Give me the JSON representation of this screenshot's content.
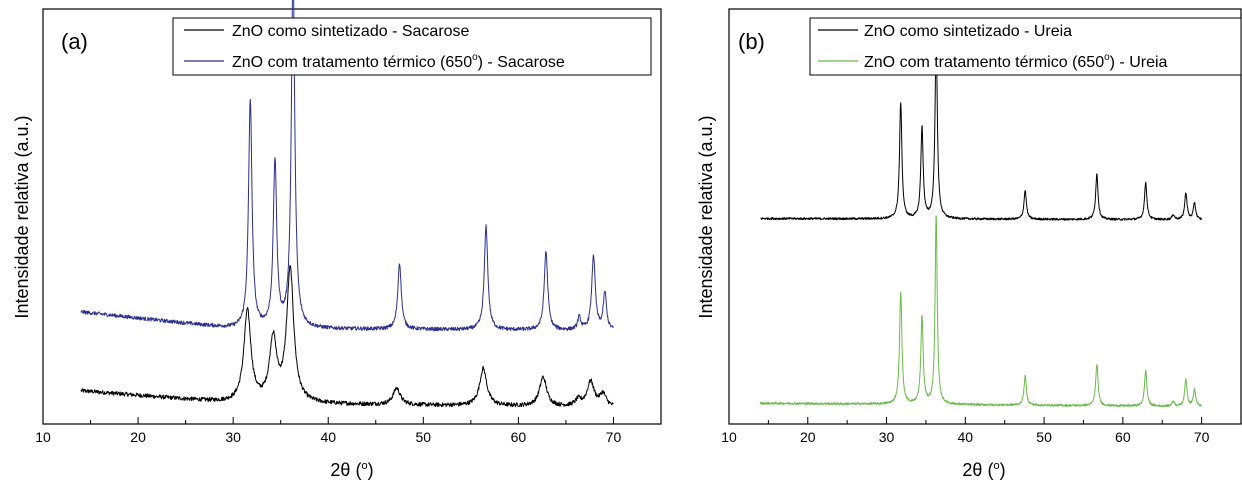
{
  "chart_data": [
    {
      "type": "line",
      "panel_label": "(a)",
      "ylabel": "Intensidade relativa (a.u.)",
      "xlabel": "2θ (°)",
      "xlabel_parts": {
        "symbol": "2θ",
        "unit_open": " (",
        "unit": "o",
        "unit_close": ")"
      },
      "xlim": [
        10,
        75
      ],
      "xticks": [
        10,
        20,
        30,
        40,
        50,
        60,
        70
      ],
      "ylim": [
        0,
        100
      ],
      "legend_position": "top-right",
      "series": [
        {
          "name": "ZnO como sintetizado - Sacarose",
          "legend": {
            "before": "ZnO como sintetizado - Sacarose"
          },
          "color": "#000000",
          "x_range": [
            14,
            70
          ],
          "baseline": [
            [
              14,
              8.0
            ],
            [
              30,
              5.0
            ],
            [
              70,
              4.0
            ]
          ],
          "peaks": [
            {
              "x": 31.5,
              "height": 22,
              "width": 0.45
            },
            {
              "x": 34.2,
              "height": 15,
              "width": 0.45
            },
            {
              "x": 36.0,
              "height": 32,
              "width": 0.45
            },
            {
              "x": 47.2,
              "height": 4,
              "width": 0.45
            },
            {
              "x": 56.3,
              "height": 9,
              "width": 0.45
            },
            {
              "x": 62.6,
              "height": 7,
              "width": 0.45
            },
            {
              "x": 67.6,
              "height": 6,
              "width": 0.45
            },
            {
              "x": 68.9,
              "height": 3,
              "width": 0.4
            },
            {
              "x": 66.3,
              "height": 1.5,
              "width": 0.4
            }
          ],
          "noise": 0.5
        },
        {
          "name": "ZnO com tratamento térmico (650°) - Sacarose",
          "legend": {
            "before": "ZnO com tratamento térmico (650",
            "sup": "o",
            "after": ") - Sacarose"
          },
          "color": "#2b2f8f",
          "x_range": [
            14,
            70
          ],
          "baseline": [
            [
              14,
              27.0
            ],
            [
              30,
              23.0
            ],
            [
              70,
              22.5
            ]
          ],
          "peaks": [
            {
              "x": 31.8,
              "height": 55,
              "width": 0.22
            },
            {
              "x": 34.4,
              "height": 40,
              "width": 0.22
            },
            {
              "x": 36.3,
              "height": 86,
              "width": 0.22
            },
            {
              "x": 47.5,
              "height": 16,
              "width": 0.22
            },
            {
              "x": 56.6,
              "height": 25,
              "width": 0.22
            },
            {
              "x": 62.9,
              "height": 19,
              "width": 0.22
            },
            {
              "x": 66.4,
              "height": 3,
              "width": 0.2
            },
            {
              "x": 67.9,
              "height": 18,
              "width": 0.22
            },
            {
              "x": 69.1,
              "height": 9,
              "width": 0.2
            }
          ],
          "noise": 0.45
        }
      ]
    },
    {
      "type": "line",
      "panel_label": "(b)",
      "ylabel": "Intensidade relativa (a.u.)",
      "xlabel": "2θ (°)",
      "xlabel_parts": {
        "symbol": "2θ",
        "unit_open": " (",
        "unit": "o",
        "unit_close": ")"
      },
      "xlim": [
        10,
        75
      ],
      "xticks": [
        10,
        20,
        30,
        40,
        50,
        60,
        70
      ],
      "ylim": [
        0,
        100
      ],
      "legend_position": "top-right",
      "series": [
        {
          "name": "ZnO como sintetizado - Ureia",
          "legend": {
            "before": "ZnO como sintetizado - Ureia"
          },
          "color": "#000000",
          "x_range": [
            14,
            70
          ],
          "baseline": [
            [
              14,
              49.5
            ],
            [
              70,
              49.2
            ]
          ],
          "peaks": [
            {
              "x": 31.8,
              "height": 28,
              "width": 0.18
            },
            {
              "x": 34.5,
              "height": 22,
              "width": 0.18
            },
            {
              "x": 36.3,
              "height": 43,
              "width": 0.18
            },
            {
              "x": 47.6,
              "height": 7,
              "width": 0.18
            },
            {
              "x": 56.7,
              "height": 11,
              "width": 0.18
            },
            {
              "x": 62.9,
              "height": 9,
              "width": 0.18
            },
            {
              "x": 66.4,
              "height": 1.2,
              "width": 0.18
            },
            {
              "x": 68.0,
              "height": 6.5,
              "width": 0.18
            },
            {
              "x": 69.1,
              "height": 4,
              "width": 0.18
            }
          ],
          "noise": 0.25
        },
        {
          "name": "ZnO com tratamento térmico (650°) - Ureia",
          "legend": {
            "before": "ZnO com tratamento térmico (650",
            "sup": "o",
            "after": ") - Ureia"
          },
          "color": "#6abb4a",
          "x_range": [
            14,
            70
          ],
          "baseline": [
            [
              14,
              5.0
            ],
            [
              70,
              4.2
            ]
          ],
          "peaks": [
            {
              "x": 31.8,
              "height": 27,
              "width": 0.18
            },
            {
              "x": 34.5,
              "height": 21,
              "width": 0.18
            },
            {
              "x": 36.3,
              "height": 46,
              "width": 0.16
            },
            {
              "x": 47.6,
              "height": 7,
              "width": 0.18
            },
            {
              "x": 56.7,
              "height": 10,
              "width": 0.18
            },
            {
              "x": 62.9,
              "height": 8.5,
              "width": 0.18
            },
            {
              "x": 66.4,
              "height": 1.2,
              "width": 0.18
            },
            {
              "x": 68.0,
              "height": 6.5,
              "width": 0.18
            },
            {
              "x": 69.1,
              "height": 4,
              "width": 0.18
            }
          ],
          "noise": 0.25
        }
      ]
    }
  ]
}
